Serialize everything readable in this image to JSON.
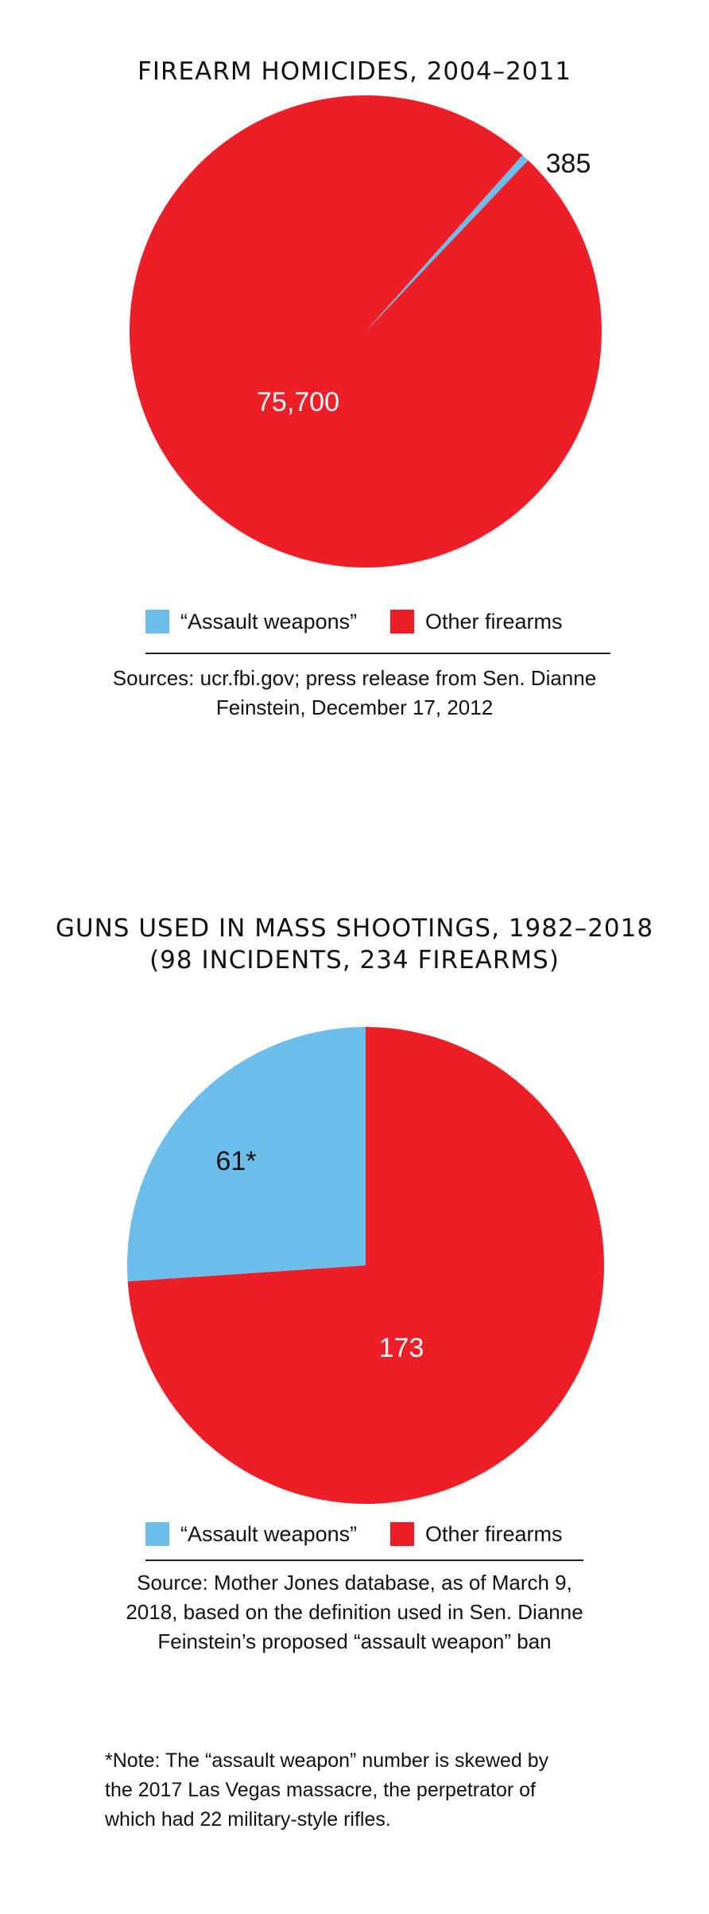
{
  "colors": {
    "assault": "#6cbde9",
    "other": "#ec1f28",
    "text": "#111111",
    "label_on_red": "#ffffff",
    "label_on_blue": "#111111"
  },
  "chart_data": [
    {
      "type": "pie",
      "title": "FIREARM HOMICIDES, 2004–2011",
      "slices": [
        {
          "category": "“Assault weapons”",
          "value": 385,
          "label": "385",
          "color": "#6cbde9"
        },
        {
          "category": "Other firearms",
          "value": 75700,
          "label": "75,700",
          "color": "#ec1f28"
        }
      ],
      "legend": [
        "“Assault weapons”",
        "Other firearms"
      ],
      "legend_position": "bottom",
      "source": "Sources: ucr.fbi.gov; press release from Sen. Dianne Feinstein, December 17, 2012"
    },
    {
      "type": "pie",
      "title": "GUNS USED IN MASS SHOOTINGS, 1982–2018 (98 INCIDENTS, 234 FIREARMS)",
      "slices": [
        {
          "category": "“Assault weapons”",
          "value": 61,
          "label": "61*",
          "color": "#6cbde9"
        },
        {
          "category": "Other firearms",
          "value": 173,
          "label": "173",
          "color": "#ec1f28"
        }
      ],
      "legend": [
        "“Assault weapons”",
        "Other firearms"
      ],
      "legend_position": "bottom",
      "source": "Source: Mother Jones database, as of March 9, 2018, based on the definition used in Sen. Dianne Feinstein’s proposed “assault weapon” ban"
    }
  ],
  "chart1": {
    "title": "FIREARM HOMICIDES, 2004–2011",
    "legend_assault": "“Assault weapons”",
    "legend_other": "Other firearms",
    "label_assault": "385",
    "label_other": "75,700",
    "source_line1": "Sources: ucr.fbi.gov; press release from Sen. Dianne",
    "source_line2": "Feinstein, December 17, 2012"
  },
  "chart2": {
    "title_line1": "GUNS USED IN MASS SHOOTINGS, 1982–2018",
    "title_line2": "(98 INCIDENTS, 234 FIREARMS)",
    "legend_assault": "“Assault weapons”",
    "legend_other": "Other firearms",
    "label_assault": "61*",
    "label_other": "173",
    "source_line1": "Source: Mother Jones database, as of March 9,",
    "source_line2": "2018, based on the definition used in Sen. Dianne",
    "source_line3": "Feinstein’s proposed “assault weapon” ban"
  },
  "note": {
    "line1": "*Note: The “assault weapon” number is skewed by",
    "line2": "the 2017 Las Vegas massacre, the perpetrator of",
    "line3": "which had 22 military-style rifles."
  }
}
